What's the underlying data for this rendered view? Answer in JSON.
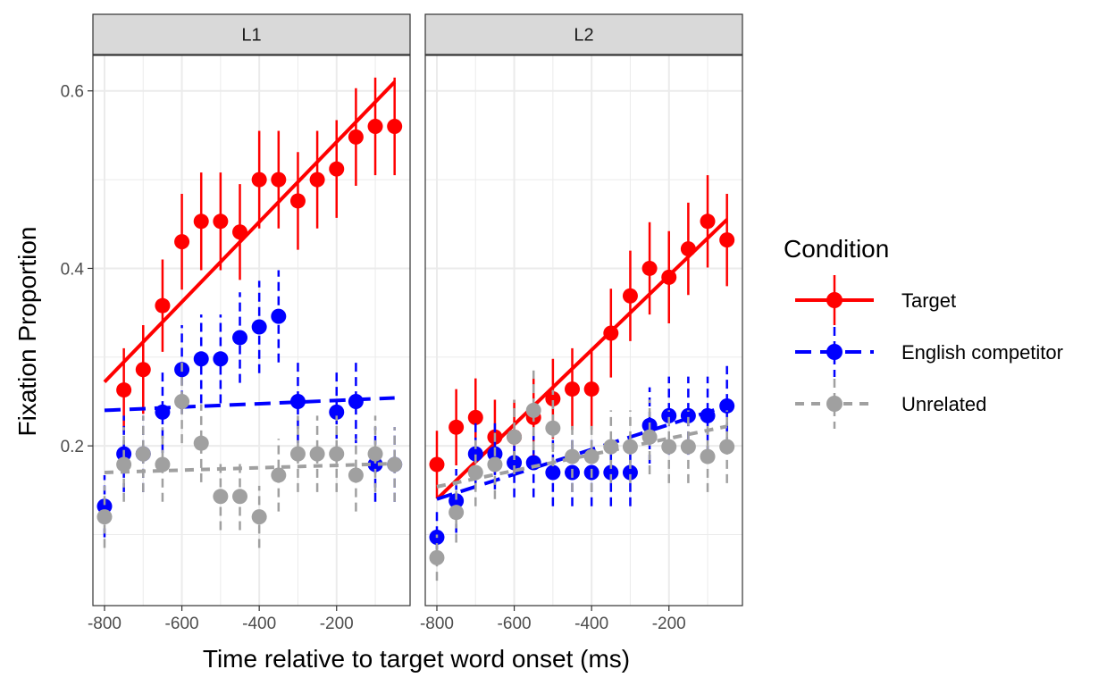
{
  "chart_data": {
    "type": "scatter",
    "title": "",
    "xlabel": "Time relative to target word onset (ms)",
    "ylabel": "Fixation Proportion",
    "xlim": [
      -830,
      -10
    ],
    "ylim": [
      0.02,
      0.64
    ],
    "x_ticks": [
      -800,
      -600,
      -400,
      -200
    ],
    "x_tick_labels": [
      "-800",
      "-600",
      "-400",
      "-200"
    ],
    "y_ticks": [
      0.2,
      0.4,
      0.6
    ],
    "y_tick_labels": [
      "0.2",
      "0.4",
      "0.6"
    ],
    "grid": true,
    "legend": {
      "title": "Condition",
      "position": "right",
      "entries": [
        {
          "label": "Target",
          "color": "#ff0000",
          "linetype": "solid"
        },
        {
          "label": "English competitor",
          "color": "#0000ff",
          "linetype": "longdash"
        },
        {
          "label": "Unrelated",
          "color": "#a0a0a0",
          "linetype": "dashed"
        }
      ]
    },
    "x": [
      -800,
      -750,
      -700,
      -650,
      -600,
      -550,
      -500,
      -450,
      -400,
      -350,
      -300,
      -250,
      -200,
      -150,
      -100,
      -50
    ],
    "panels": [
      {
        "label": "L1",
        "series": [
          {
            "name": "Target",
            "color": "#ff0000",
            "dash": "",
            "values": [
              null,
              0.263,
              0.286,
              0.358,
              0.43,
              0.453,
              0.453,
              0.441,
              0.5,
              0.5,
              0.476,
              0.5,
              0.512,
              0.548,
              0.56,
              0.56
            ],
            "err": [
              0,
              0.047,
              0.05,
              0.052,
              0.054,
              0.055,
              0.055,
              0.054,
              0.055,
              0.055,
              0.055,
              0.055,
              0.055,
              0.055,
              0.055,
              0.055
            ],
            "fit": [
              0.272,
              0.61
            ]
          },
          {
            "name": "English competitor",
            "color": "#0000ff",
            "dash": "18,10",
            "values": [
              0.132,
              0.191,
              0.191,
              0.238,
              0.286,
              0.298,
              0.298,
              0.322,
              0.334,
              0.346,
              0.25,
              null,
              0.238,
              0.25,
              0.179,
              0.179
            ],
            "err": [
              0.035,
              0.043,
              0.043,
              0.046,
              0.05,
              0.05,
              0.05,
              0.051,
              0.052,
              0.052,
              0.047,
              0,
              0.046,
              0.047,
              0.042,
              0.042
            ],
            "fit": [
              0.24,
              0.254
            ]
          },
          {
            "name": "Unrelated",
            "color": "#a0a0a0",
            "dash": "10,8",
            "values": [
              0.12,
              0.179,
              0.191,
              0.179,
              0.25,
              0.203,
              0.143,
              0.143,
              0.12,
              0.167,
              0.191,
              0.191,
              0.191,
              0.167,
              0.191,
              0.179
            ],
            "err": [
              0.035,
              0.042,
              0.043,
              0.042,
              0.047,
              0.044,
              0.038,
              0.038,
              0.035,
              0.041,
              0.043,
              0.043,
              0.043,
              0.041,
              0.043,
              0.042
            ],
            "fit": [
              0.17,
              0.18
            ]
          }
        ]
      },
      {
        "label": "L2",
        "series": [
          {
            "name": "Target",
            "color": "#ff0000",
            "dash": "",
            "values": [
              0.179,
              0.221,
              0.232,
              0.21,
              0.21,
              0.232,
              0.253,
              0.264,
              0.264,
              0.327,
              0.369,
              0.4,
              0.39,
              0.422,
              0.453,
              0.432
            ],
            "err": [
              0.038,
              0.043,
              0.044,
              0.042,
              0.042,
              0.044,
              0.045,
              0.046,
              0.046,
              0.05,
              0.051,
              0.052,
              0.052,
              0.052,
              0.052,
              0.052
            ],
            "fit": [
              0.14,
              0.455
            ]
          },
          {
            "name": "English competitor",
            "color": "#0000ff",
            "dash": "18,10",
            "values": [
              0.097,
              0.138,
              0.191,
              0.191,
              0.181,
              0.181,
              0.17,
              0.17,
              0.17,
              0.17,
              0.17,
              0.223,
              0.234,
              0.234,
              0.234,
              0.245
            ],
            "err": [
              0.03,
              0.036,
              0.04,
              0.04,
              0.039,
              0.039,
              0.038,
              0.038,
              0.038,
              0.038,
              0.038,
              0.043,
              0.044,
              0.044,
              0.044,
              0.045
            ],
            "fit": [
              0.14,
              0.245
            ]
          },
          {
            "name": "Unrelated",
            "color": "#a0a0a0",
            "dash": "10,8",
            "values": [
              0.074,
              0.125,
              0.17,
              0.179,
              0.21,
              0.24,
              0.22,
              0.188,
              0.188,
              0.199,
              0.199,
              0.21,
              0.199,
              0.199,
              0.188,
              0.199
            ],
            "err": [
              0.026,
              0.034,
              0.038,
              0.039,
              0.042,
              0.045,
              0.043,
              0.04,
              0.04,
              0.041,
              0.041,
              0.042,
              0.041,
              0.041,
              0.04,
              0.041
            ],
            "fit": [
              0.154,
              0.222
            ]
          }
        ]
      }
    ]
  }
}
